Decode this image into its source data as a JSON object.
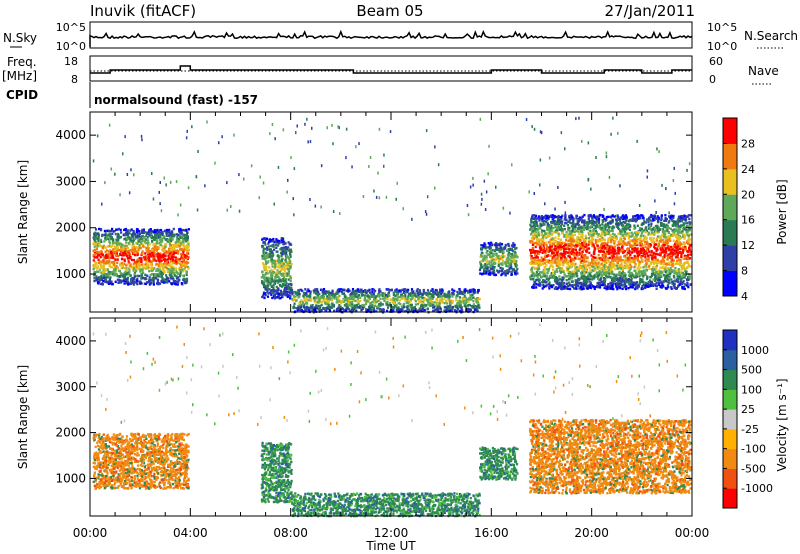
{
  "header": {
    "station": "Inuvik (fitACF)",
    "beam": "Beam 05",
    "date": "27/Jan/2011"
  },
  "top_panels": {
    "nsky_label": "N.Sky",
    "nsky_ticks": [
      "10^5",
      "10^0"
    ],
    "nsearch_label": "N.Search",
    "nsearch_ticks": [
      "10^5",
      "10^0"
    ],
    "freq_label_1": "Freq.",
    "freq_label_2": "[MHz]",
    "freq_ticks": [
      "18",
      "8"
    ],
    "nave_label": "Nave",
    "nave_ticks": [
      "60",
      "0"
    ],
    "cpid_label": "CPID",
    "cpid_text": "normalsound (fast) -157"
  },
  "chart_data": [
    {
      "type": "heatmap",
      "title": "",
      "quantity": "Power",
      "xlabel": "Time UT",
      "ylabel": "Slant Range [km]",
      "xlim": [
        "00:00",
        "24:00"
      ],
      "ylim": [
        180,
        4500
      ],
      "yticks": [
        "1000",
        "2000",
        "3000",
        "4000"
      ],
      "colorbar_label": "Power [dB]",
      "colorbar_ticks": [
        "28",
        "24",
        "20",
        "16",
        "12",
        "8",
        "4"
      ],
      "colorbar_colors": [
        "#0000ff",
        "#2e3fa8",
        "#2a7a55",
        "#5ea85a",
        "#e8c020",
        "#f07a10",
        "#ff0000"
      ],
      "echo_regions": [
        {
          "t0": 0.1,
          "t1": 3.9,
          "r0": 800,
          "r1": 2000,
          "level": "strong"
        },
        {
          "t0": 6.8,
          "t1": 8.0,
          "r0": 500,
          "r1": 1800,
          "level": "medium"
        },
        {
          "t0": 8.0,
          "t1": 15.5,
          "r0": 200,
          "r1": 700,
          "level": "medium"
        },
        {
          "t0": 15.5,
          "t1": 17.0,
          "r0": 1000,
          "r1": 1700,
          "level": "medium"
        },
        {
          "t0": 17.5,
          "t1": 23.9,
          "r0": 700,
          "r1": 2300,
          "level": "strong"
        }
      ]
    },
    {
      "type": "heatmap",
      "title": "",
      "quantity": "Velocity",
      "xlabel": "Time UT",
      "ylabel": "Slant Range [km]",
      "xlim": [
        "00:00",
        "24:00"
      ],
      "ylim": [
        180,
        4500
      ],
      "yticks": [
        "1000",
        "2000",
        "3000",
        "4000"
      ],
      "colorbar_label": "Velocity [m s⁻¹]",
      "colorbar_ticks": [
        "1000",
        "500",
        "100",
        "25",
        "-25",
        "-100",
        "-500",
        "-1000"
      ],
      "colorbar_colors": [
        "#ff0000",
        "#f05010",
        "#f08a10",
        "#ffb000",
        "#c8c8c8",
        "#4ec040",
        "#2e8a50",
        "#2a60a0",
        "#2030c0"
      ],
      "echo_regions": [
        {
          "t0": 0.1,
          "t1": 3.9,
          "r0": 800,
          "r1": 2000,
          "level": "away"
        },
        {
          "t0": 6.8,
          "t1": 8.0,
          "r0": 500,
          "r1": 1800,
          "level": "toward"
        },
        {
          "t0": 8.0,
          "t1": 15.5,
          "r0": 200,
          "r1": 700,
          "level": "toward"
        },
        {
          "t0": 15.5,
          "t1": 17.0,
          "r0": 1000,
          "r1": 1700,
          "level": "toward"
        },
        {
          "t0": 17.5,
          "t1": 23.9,
          "r0": 700,
          "r1": 2300,
          "level": "away"
        }
      ]
    }
  ],
  "x_axis": {
    "ticks": [
      "00:00",
      "04:00",
      "08:00",
      "12:00",
      "16:00",
      "20:00",
      "00:00"
    ],
    "label": "Time UT"
  }
}
